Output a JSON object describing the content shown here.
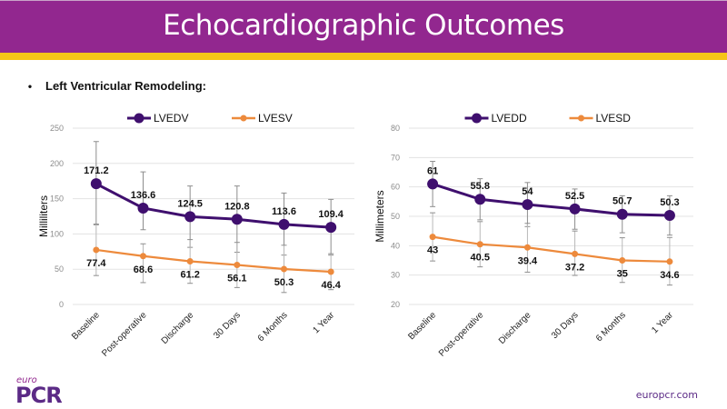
{
  "slide": {
    "title": "Echocardiographic Outcomes",
    "bullet": "Left Ventricular Remodeling:",
    "logo_small": "euro",
    "logo_large": "PCR",
    "website": "europcr.com",
    "colors": {
      "header": "#92278f",
      "accent_bar": "#f5c518",
      "series_dark": "#3f0f6e",
      "series_orange": "#ed8a3c"
    }
  },
  "chart_data": [
    {
      "type": "line",
      "title": "",
      "xlabel": "",
      "ylabel": "Milliliters",
      "ylim": [
        0,
        250
      ],
      "yticks": [
        0,
        50,
        100,
        150,
        200,
        250
      ],
      "grid": true,
      "legend": "top-center",
      "categories": [
        "Baseline",
        "Post-operative",
        "Discharge",
        "30 Days",
        "6 Months",
        "1 Year"
      ],
      "series": [
        {
          "name": "LVEDV",
          "color": "#3f0f6e",
          "marker": "large-circle",
          "values": [
            171.2,
            136.6,
            124.5,
            120.8,
            113.6,
            109.4
          ],
          "error_high": [
            231,
            188,
            168,
            168,
            158,
            149
          ],
          "error_low": [
            113,
            106,
            81,
            74,
            70,
            70
          ],
          "labels_position": "above"
        },
        {
          "name": "LVESV",
          "color": "#ed8a3c",
          "marker": "small-circle",
          "values": [
            77.4,
            68.6,
            61.2,
            56.1,
            50.3,
            46.4
          ],
          "error_high": [
            114,
            86,
            92,
            88,
            84,
            72
          ],
          "error_low": [
            41,
            31,
            30,
            24,
            17,
            21
          ],
          "labels_position": "below"
        }
      ]
    },
    {
      "type": "line",
      "title": "",
      "xlabel": "",
      "ylabel": "Millimeters",
      "ylim": [
        20,
        80
      ],
      "yticks": [
        20,
        30,
        40,
        50,
        60,
        70,
        80
      ],
      "grid": true,
      "legend": "top-center",
      "categories": [
        "Baseline",
        "Post-operative",
        "Discharge",
        "30 Days",
        "6 Months",
        "1 Year"
      ],
      "series": [
        {
          "name": "LVEDD",
          "color": "#3f0f6e",
          "marker": "large-circle",
          "values": [
            61,
            55.8,
            54,
            52.5,
            50.7,
            50.3
          ],
          "error_high": [
            68.7,
            62.8,
            61.5,
            59.3,
            57,
            57
          ],
          "error_low": [
            53.3,
            48.8,
            46.5,
            45.6,
            44.4,
            43.6
          ],
          "labels_position": "above"
        },
        {
          "name": "LVESD",
          "color": "#ed8a3c",
          "marker": "small-circle",
          "values": [
            43,
            40.5,
            39.4,
            37.2,
            35,
            34.6
          ],
          "error_high": [
            51.2,
            48.2,
            47.6,
            45,
            42.7,
            42.8
          ],
          "error_low": [
            34.8,
            32.8,
            31,
            29.9,
            27.5,
            26.6
          ],
          "labels_position": "below"
        }
      ]
    }
  ]
}
